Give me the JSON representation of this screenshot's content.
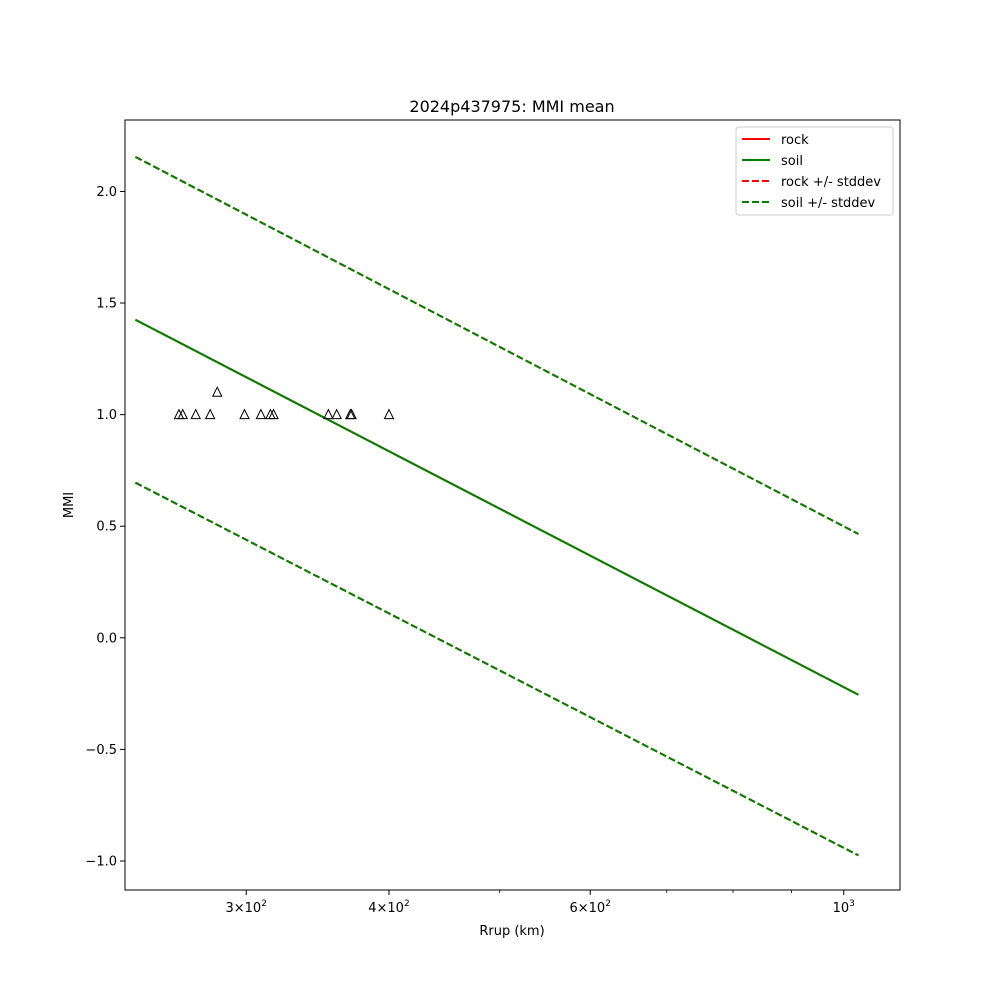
{
  "chart_data": {
    "type": "line",
    "title": "2024p437975: MMI mean",
    "xlabel": "Rrup (km)",
    "ylabel": "MMI",
    "xscale": "log",
    "xlim": [
      235,
      1120
    ],
    "ylim": [
      -1.13,
      2.32
    ],
    "grid": false,
    "legend_position": "top-right",
    "x_ticks": [
      {
        "value": 300,
        "base": "3×10",
        "exp": "2"
      },
      {
        "value": 400,
        "base": "4×10",
        "exp": "2"
      },
      {
        "value": 600,
        "base": "6×10",
        "exp": "2"
      },
      {
        "value": 1000,
        "base": "10",
        "exp": "3"
      }
    ],
    "x_minor_ticks": [
      500,
      700,
      800,
      900
    ],
    "y_ticks": [
      "−1.0",
      "−0.5",
      "0.0",
      "0.5",
      "1.0",
      "1.5",
      "2.0"
    ],
    "y_tick_values": [
      -1.0,
      -0.5,
      0.0,
      0.5,
      1.0,
      1.5,
      2.0
    ],
    "series": [
      {
        "name": "rock",
        "style": "solid",
        "color": "#ff0000",
        "x": [
          240,
          1030
        ],
        "y": [
          1.425,
          -0.255
        ]
      },
      {
        "name": "soil",
        "style": "solid",
        "color": "#008000",
        "x": [
          240,
          1030
        ],
        "y": [
          1.425,
          -0.255
        ]
      },
      {
        "name": "rock +/- stddev",
        "style": "dashed",
        "color": "#ff0000",
        "upper": {
          "x": [
            240,
            1030
          ],
          "y": [
            2.155,
            0.465
          ]
        },
        "lower": {
          "x": [
            240,
            1030
          ],
          "y": [
            0.695,
            -0.975
          ]
        }
      },
      {
        "name": "soil +/- stddev",
        "style": "dashed",
        "color": "#008000",
        "upper": {
          "x": [
            240,
            1030
          ],
          "y": [
            2.155,
            0.465
          ]
        },
        "lower": {
          "x": [
            240,
            1030
          ],
          "y": [
            0.695,
            -0.975
          ]
        }
      }
    ],
    "observations": {
      "marker": "triangle",
      "x": [
        262,
        264,
        271,
        279,
        283,
        299,
        309,
        315,
        317,
        354,
        360,
        370,
        371,
        400
      ],
      "y": [
        1.0,
        1.0,
        1.0,
        1.0,
        1.1,
        1.0,
        1.0,
        1.0,
        1.0,
        1.0,
        1.0,
        1.0,
        1.0,
        1.0
      ]
    }
  }
}
